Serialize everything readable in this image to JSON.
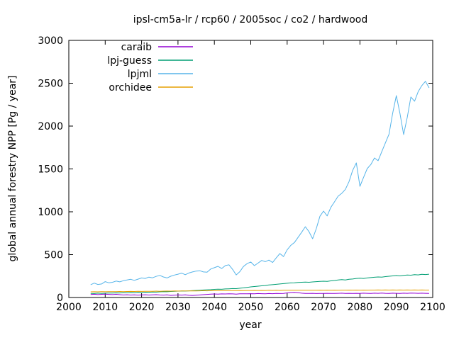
{
  "chart_data": {
    "type": "line",
    "title": "ipsl-cm5a-lr / rcp60 / 2005soc / co2 / hardwood",
    "xlabel": "year",
    "ylabel": "global annual forestry NPP [Pg / year]",
    "xlim": [
      2000,
      2100
    ],
    "ylim": [
      0,
      3000
    ],
    "xticks": [
      2000,
      2010,
      2020,
      2030,
      2040,
      2050,
      2060,
      2070,
      2080,
      2090,
      2100
    ],
    "yticks": [
      0,
      500,
      1000,
      1500,
      2000,
      2500,
      3000
    ],
    "grid": false,
    "legend_position": "top-left-inside",
    "frame_color": "#000000",
    "years": [
      2006,
      2007,
      2008,
      2009,
      2010,
      2011,
      2012,
      2013,
      2014,
      2015,
      2016,
      2017,
      2018,
      2019,
      2020,
      2021,
      2022,
      2023,
      2024,
      2025,
      2026,
      2027,
      2028,
      2029,
      2030,
      2031,
      2032,
      2033,
      2034,
      2035,
      2036,
      2037,
      2038,
      2039,
      2040,
      2041,
      2042,
      2043,
      2044,
      2045,
      2046,
      2047,
      2048,
      2049,
      2050,
      2051,
      2052,
      2053,
      2054,
      2055,
      2056,
      2057,
      2058,
      2059,
      2060,
      2061,
      2062,
      2063,
      2064,
      2065,
      2066,
      2067,
      2068,
      2069,
      2070,
      2071,
      2072,
      2073,
      2074,
      2075,
      2076,
      2077,
      2078,
      2079,
      2080,
      2081,
      2082,
      2083,
      2084,
      2085,
      2086,
      2087,
      2088,
      2089,
      2090,
      2091,
      2092,
      2093,
      2094,
      2095,
      2096,
      2097,
      2098,
      2099
    ],
    "series": [
      {
        "name": "caraib",
        "color": "#9400d3",
        "values": [
          35,
          38,
          34,
          37,
          39,
          36,
          34,
          37,
          33,
          30,
          32,
          29,
          31,
          28,
          30,
          32,
          29,
          31,
          33,
          30,
          28,
          31,
          25,
          27,
          30,
          28,
          31,
          26,
          24,
          27,
          30,
          33,
          36,
          39,
          41,
          40,
          42,
          41,
          43,
          42,
          40,
          43,
          44,
          43,
          45,
          44,
          46,
          45,
          44,
          46,
          45,
          47,
          46,
          48,
          54,
          58,
          60,
          55,
          50,
          48,
          47,
          49,
          46,
          48,
          47,
          49,
          48,
          47,
          49,
          50,
          48,
          49,
          47,
          49,
          48,
          50,
          49,
          48,
          50,
          49,
          51,
          49,
          48,
          50,
          49,
          48,
          50,
          49,
          51,
          50,
          49,
          50,
          49,
          48
        ]
      },
      {
        "name": "lpj-guess",
        "color": "#009e73",
        "values": [
          48,
          46,
          50,
          47,
          50,
          52,
          51,
          54,
          53,
          56,
          55,
          58,
          57,
          60,
          59,
          62,
          61,
          64,
          63,
          66,
          68,
          67,
          70,
          72,
          74,
          76,
          75,
          78,
          80,
          83,
          85,
          88,
          90,
          92,
          95,
          97,
          96,
          100,
          102,
          104,
          103,
          108,
          112,
          118,
          124,
          128,
          132,
          136,
          140,
          146,
          150,
          154,
          158,
          162,
          166,
          170,
          172,
          175,
          178,
          180,
          178,
          182,
          185,
          188,
          190,
          188,
          194,
          198,
          204,
          208,
          205,
          212,
          216,
          222,
          226,
          222,
          228,
          232,
          236,
          240,
          238,
          244,
          248,
          252,
          256,
          252,
          258,
          262,
          260,
          266,
          264,
          270,
          268,
          272
        ]
      },
      {
        "name": "lpjml",
        "color": "#56b4e9",
        "values": [
          150,
          168,
          152,
          158,
          185,
          172,
          178,
          192,
          183,
          196,
          204,
          212,
          200,
          214,
          228,
          222,
          238,
          230,
          246,
          258,
          240,
          228,
          248,
          262,
          272,
          284,
          266,
          286,
          298,
          308,
          312,
          298,
          296,
          332,
          348,
          364,
          338,
          372,
          382,
          328,
          264,
          302,
          362,
          396,
          414,
          372,
          402,
          432,
          418,
          436,
          408,
          462,
          512,
          478,
          556,
          608,
          642,
          702,
          762,
          826,
          768,
          686,
          802,
          948,
          1008,
          952,
          1052,
          1116,
          1182,
          1216,
          1262,
          1352,
          1482,
          1570,
          1297,
          1402,
          1504,
          1552,
          1628,
          1596,
          1702,
          1804,
          1906,
          2152,
          2355,
          2148,
          1902,
          2102,
          2340,
          2290,
          2402,
          2472,
          2522,
          2446
        ]
      },
      {
        "name": "orchidee",
        "color": "#e69f00",
        "values": [
          66,
          67,
          66,
          68,
          67,
          68,
          69,
          68,
          70,
          69,
          70,
          71,
          70,
          72,
          71,
          72,
          73,
          72,
          74,
          73,
          74,
          75,
          74,
          76,
          75,
          76,
          77,
          76,
          78,
          77,
          78,
          79,
          78,
          80,
          79,
          80,
          80,
          81,
          80,
          81,
          80,
          82,
          81,
          82,
          82,
          83,
          82,
          83,
          82,
          84,
          83,
          84,
          83,
          84,
          84,
          85,
          84,
          85,
          84,
          85,
          84,
          85,
          85,
          86,
          85,
          86,
          85,
          86,
          85,
          86,
          86,
          87,
          86,
          87,
          86,
          87,
          86,
          87,
          87,
          88,
          87,
          88,
          87,
          88,
          87,
          88,
          87,
          88,
          87,
          88,
          87,
          88,
          87,
          87
        ]
      }
    ]
  }
}
